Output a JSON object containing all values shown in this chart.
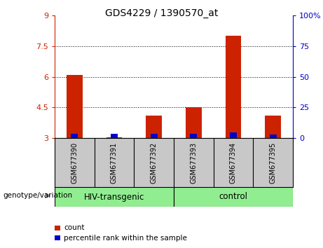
{
  "title": "GDS4229 / 1390570_at",
  "samples": [
    "GSM677390",
    "GSM677391",
    "GSM677392",
    "GSM677393",
    "GSM677394",
    "GSM677395"
  ],
  "baseline": 3.0,
  "red_values": [
    6.1,
    3.05,
    4.1,
    4.5,
    8.0,
    4.1
  ],
  "blue_values": [
    3.22,
    3.22,
    3.22,
    3.22,
    3.28,
    3.17
  ],
  "ylim_left": [
    3,
    9
  ],
  "ylim_right": [
    0,
    100
  ],
  "left_ticks": [
    3,
    4.5,
    6,
    7.5,
    9
  ],
  "right_ticks": [
    0,
    25,
    50,
    75,
    100
  ],
  "right_tick_labels": [
    "0",
    "25",
    "50",
    "75",
    "100%"
  ],
  "left_color": "#CC2200",
  "right_color": "#0000CC",
  "bar_width": 0.4,
  "red_color": "#CC2200",
  "blue_color": "#0000CC",
  "legend_red": "count",
  "legend_blue": "percentile rank within the sample",
  "bg_plot": "#FFFFFF",
  "bg_label": "#C8C8C8",
  "bg_group": "#90EE90",
  "title_fontsize": 10,
  "tick_fontsize": 8,
  "sample_fontsize": 7,
  "group_fontsize": 8.5,
  "dotted_lines": [
    4.5,
    6.0,
    7.5
  ],
  "hiv_label": "HIV-transgenic",
  "control_label": "control",
  "genotype_label": "genotype/variation"
}
